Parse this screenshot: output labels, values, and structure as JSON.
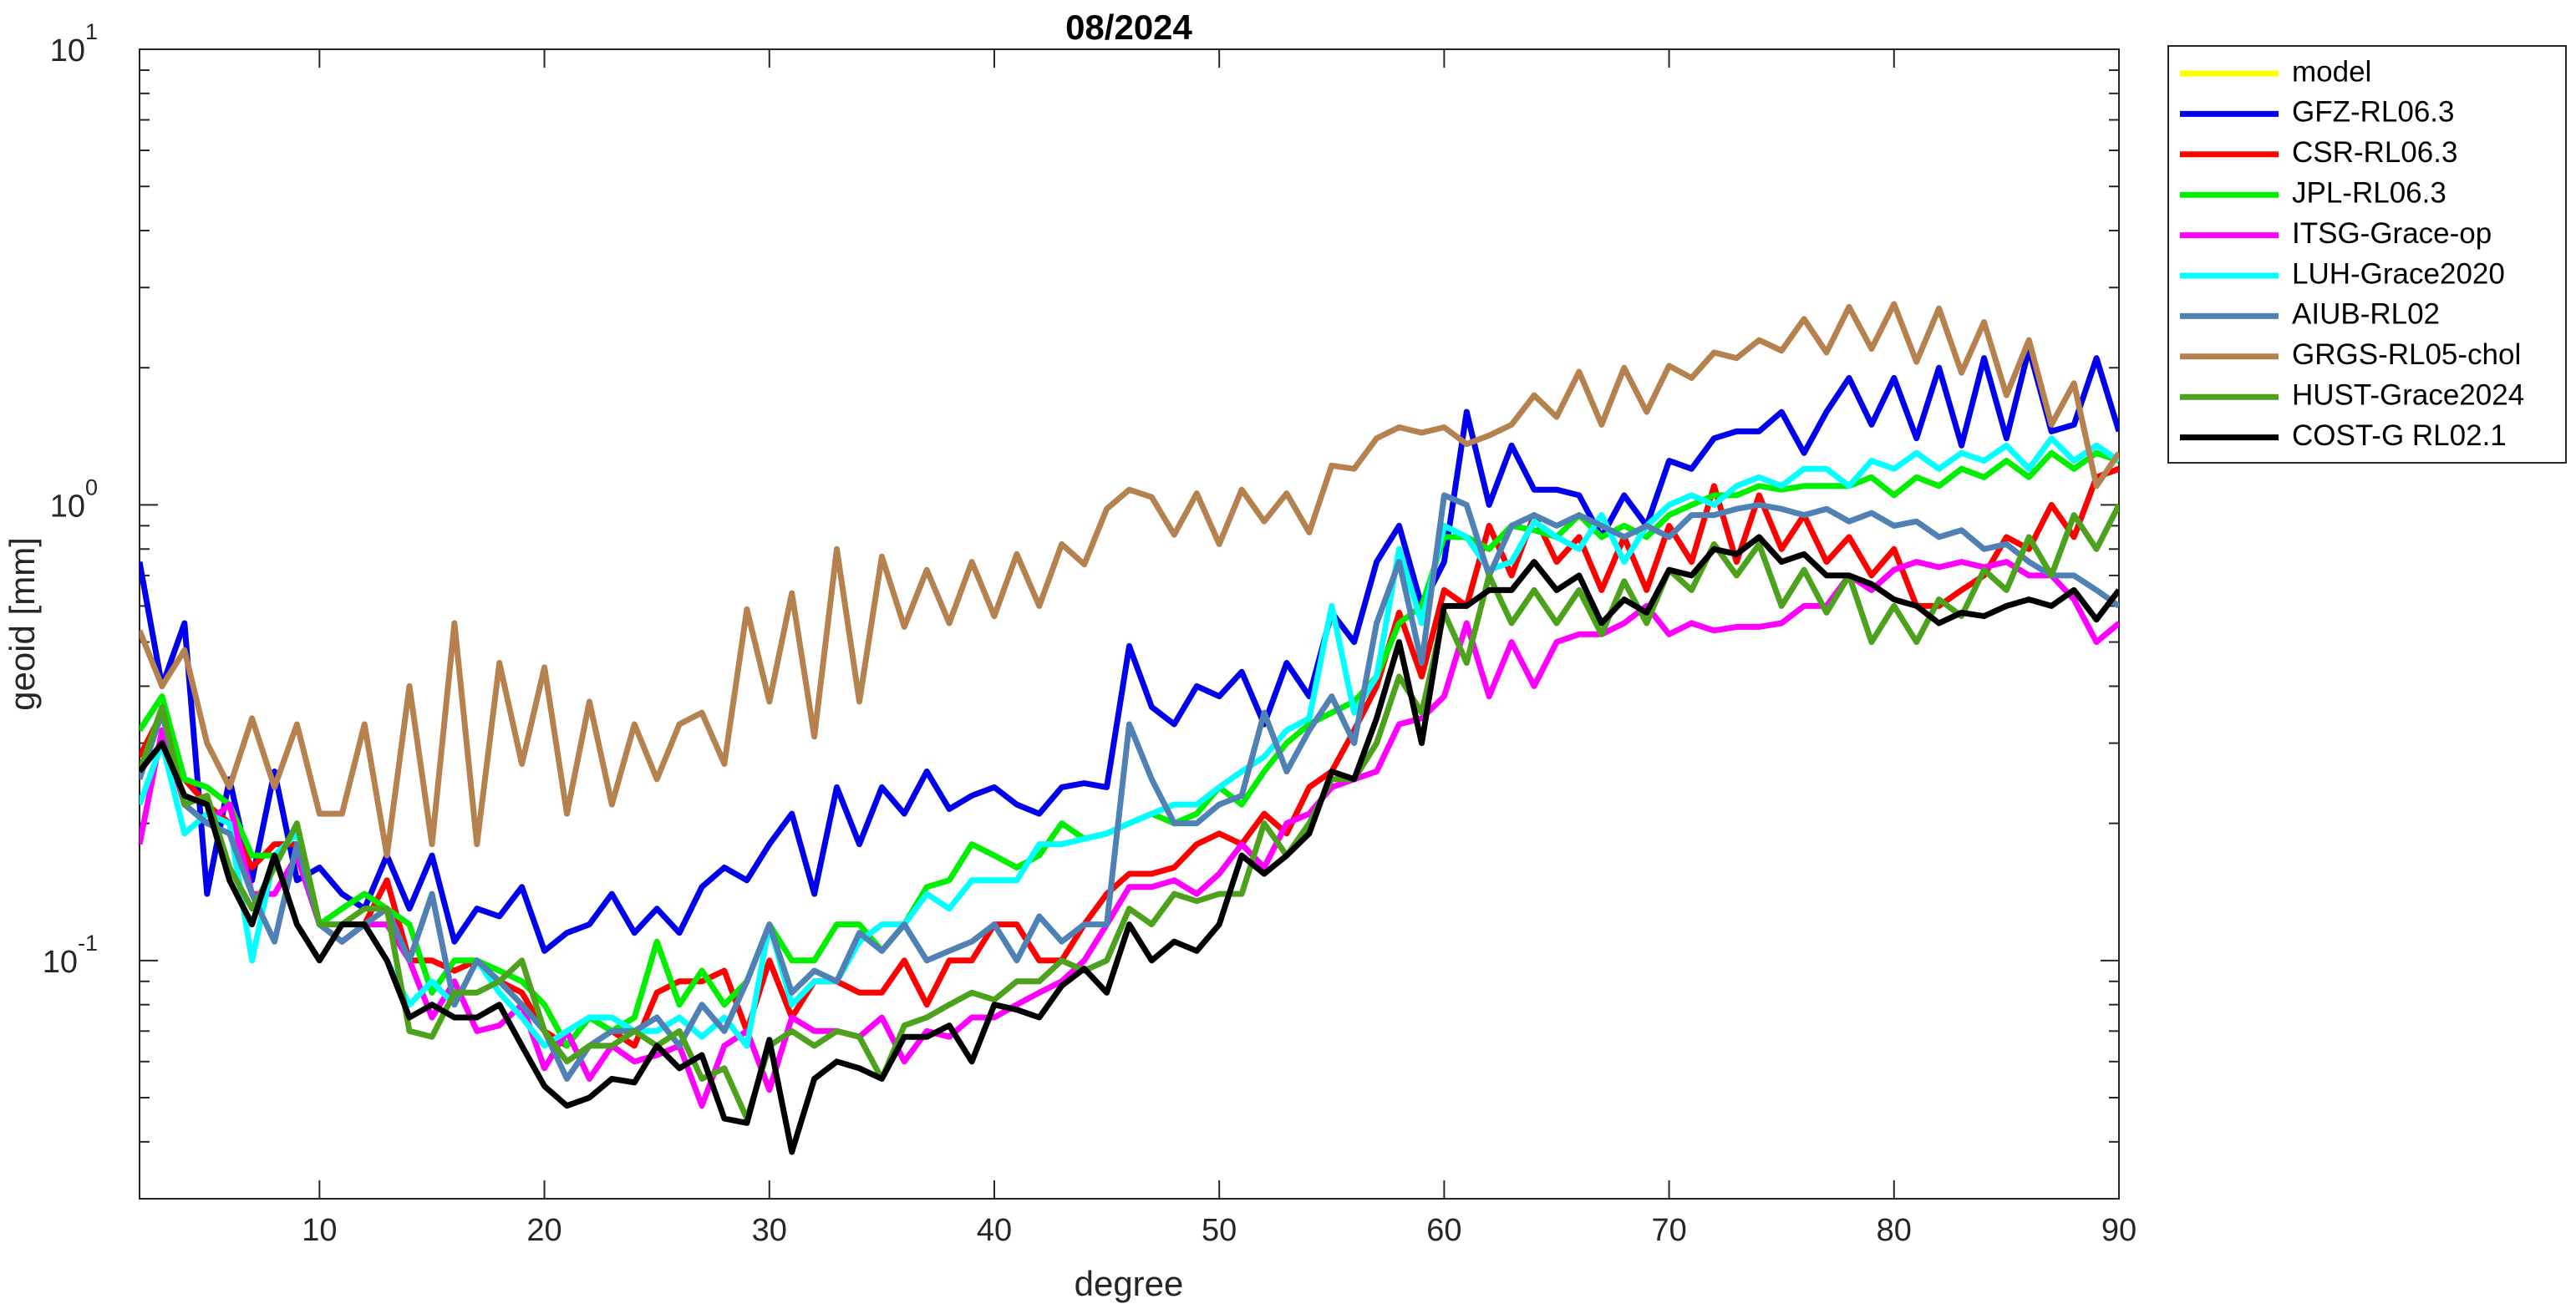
{
  "chart_data": {
    "type": "line",
    "title": "08/2024",
    "xlabel": "degree",
    "ylabel": "geoid [mm]",
    "log_y": true,
    "legend": "outside-right",
    "xlim": [
      2,
      90
    ],
    "ylim": [
      0.03,
      10
    ],
    "xticks": [
      10,
      20,
      30,
      40,
      50,
      60,
      70,
      80,
      90
    ],
    "yticks": [
      {
        "value": 0.1,
        "label": "10",
        "exponent": "-1"
      },
      {
        "value": 1,
        "label": "10",
        "exponent": "0"
      },
      {
        "value": 10,
        "label": "10",
        "exponent": "1"
      }
    ],
    "yminorticks": [
      0.04,
      0.05,
      0.06,
      0.07,
      0.08,
      0.09,
      0.2,
      0.3,
      0.4,
      0.5,
      0.6,
      0.7,
      0.8,
      0.9,
      2,
      3,
      4,
      5,
      6,
      7,
      8,
      9
    ],
    "x": [
      2,
      3,
      4,
      5,
      6,
      7,
      8,
      9,
      10,
      11,
      12,
      13,
      14,
      15,
      16,
      17,
      18,
      19,
      20,
      21,
      22,
      23,
      24,
      25,
      26,
      27,
      28,
      29,
      30,
      31,
      32,
      33,
      34,
      35,
      36,
      37,
      38,
      39,
      40,
      41,
      42,
      43,
      44,
      45,
      46,
      47,
      48,
      49,
      50,
      51,
      52,
      53,
      54,
      55,
      56,
      57,
      58,
      59,
      60,
      61,
      62,
      63,
      64,
      65,
      66,
      67,
      68,
      69,
      70,
      71,
      72,
      73,
      74,
      75,
      76,
      77,
      78,
      79,
      80,
      81,
      82,
      83,
      84,
      85,
      86,
      87,
      88,
      89,
      90
    ],
    "series": [
      {
        "name": "model",
        "color": "#ffff00",
        "values": [
          null,
          null,
          null,
          null,
          null,
          null,
          null,
          null,
          null,
          null,
          null,
          null,
          null,
          null,
          null,
          null,
          null,
          null,
          null,
          null,
          null,
          null,
          null,
          null,
          null,
          null,
          null,
          null,
          null,
          null,
          null,
          null,
          null,
          null,
          null,
          null,
          null,
          null,
          null,
          null,
          null,
          null,
          null,
          null,
          null,
          null,
          null,
          null,
          null,
          null,
          null,
          null,
          null,
          null,
          null,
          null,
          null,
          null,
          null,
          null,
          null,
          null,
          null,
          null,
          null,
          null,
          null,
          null,
          null,
          null,
          null,
          null,
          null,
          null,
          null,
          null,
          null,
          null,
          null,
          null,
          null,
          null,
          null,
          null,
          null,
          null,
          null,
          null,
          null
        ]
      },
      {
        "name": "GFZ-RL06.3",
        "color": "#0000ee",
        "values": [
          0.75,
          0.4,
          0.55,
          0.14,
          0.25,
          0.15,
          0.26,
          0.15,
          0.16,
          0.14,
          0.13,
          0.17,
          0.13,
          0.17,
          0.11,
          0.13,
          0.125,
          0.145,
          0.105,
          0.115,
          0.12,
          0.14,
          0.115,
          0.13,
          0.115,
          0.145,
          0.16,
          0.15,
          0.18,
          0.21,
          0.14,
          0.24,
          0.18,
          0.24,
          0.21,
          0.26,
          0.215,
          0.23,
          0.24,
          0.22,
          0.21,
          0.24,
          0.245,
          0.24,
          0.49,
          0.36,
          0.33,
          0.4,
          0.38,
          0.43,
          0.33,
          0.45,
          0.38,
          0.58,
          0.5,
          0.75,
          0.9,
          0.6,
          0.75,
          1.6,
          1.0,
          1.35,
          1.08,
          1.08,
          1.05,
          0.85,
          1.05,
          0.9,
          1.25,
          1.2,
          1.4,
          1.45,
          1.45,
          1.6,
          1.3,
          1.6,
          1.9,
          1.5,
          1.9,
          1.4,
          2.0,
          1.35,
          2.1,
          1.4,
          2.2,
          1.45,
          1.5,
          2.1,
          1.45
        ]
      },
      {
        "name": "CSR-RL06.3",
        "color": "#ff0000",
        "values": [
          0.28,
          0.35,
          0.25,
          0.22,
          0.2,
          0.16,
          0.18,
          0.18,
          0.12,
          0.11,
          0.12,
          0.15,
          0.1,
          0.1,
          0.095,
          0.1,
          0.09,
          0.085,
          0.07,
          0.065,
          0.075,
          0.07,
          0.065,
          0.085,
          0.09,
          0.09,
          0.095,
          0.07,
          0.1,
          0.075,
          0.09,
          0.09,
          0.085,
          0.085,
          0.1,
          0.08,
          0.1,
          0.1,
          0.12,
          0.12,
          0.1,
          0.1,
          0.12,
          0.14,
          0.155,
          0.155,
          0.16,
          0.18,
          0.19,
          0.18,
          0.21,
          0.19,
          0.24,
          0.26,
          0.32,
          0.4,
          0.58,
          0.42,
          0.65,
          0.6,
          0.9,
          0.7,
          0.95,
          0.75,
          0.85,
          0.65,
          0.85,
          0.65,
          0.9,
          0.75,
          1.1,
          0.75,
          1.05,
          0.8,
          0.95,
          0.75,
          0.85,
          0.7,
          0.8,
          0.6,
          0.6,
          0.65,
          0.7,
          0.85,
          0.8,
          1.0,
          0.85,
          1.15,
          1.2
        ]
      },
      {
        "name": "JPL-RL06.3",
        "color": "#00ee00",
        "values": [
          0.32,
          0.38,
          0.25,
          0.24,
          0.22,
          0.17,
          0.17,
          0.19,
          0.12,
          0.13,
          0.14,
          0.13,
          0.12,
          0.085,
          0.1,
          0.1,
          0.095,
          0.09,
          0.08,
          0.065,
          0.075,
          0.07,
          0.075,
          0.11,
          0.08,
          0.095,
          0.08,
          0.09,
          0.12,
          0.1,
          0.1,
          0.12,
          0.12,
          0.105,
          0.12,
          0.145,
          0.15,
          0.18,
          0.17,
          0.16,
          0.17,
          0.2,
          0.185,
          0.19,
          0.2,
          0.21,
          0.2,
          0.21,
          0.24,
          0.22,
          0.26,
          0.3,
          0.33,
          0.35,
          0.37,
          0.42,
          0.55,
          0.6,
          0.85,
          0.85,
          0.8,
          0.9,
          0.88,
          0.85,
          0.95,
          0.85,
          0.9,
          0.85,
          0.95,
          1.0,
          1.05,
          1.05,
          1.1,
          1.08,
          1.1,
          1.1,
          1.1,
          1.15,
          1.05,
          1.15,
          1.1,
          1.2,
          1.15,
          1.25,
          1.15,
          1.3,
          1.2,
          1.3,
          1.25
        ]
      },
      {
        "name": "ITSG-Grace-op",
        "color": "#ff00ff",
        "values": [
          0.18,
          0.32,
          0.22,
          0.2,
          0.22,
          0.14,
          0.14,
          0.17,
          0.12,
          0.11,
          0.12,
          0.12,
          0.1,
          0.075,
          0.09,
          0.07,
          0.072,
          0.08,
          0.058,
          0.07,
          0.055,
          0.065,
          0.06,
          0.062,
          0.065,
          0.048,
          0.065,
          0.07,
          0.052,
          0.075,
          0.07,
          0.07,
          0.068,
          0.075,
          0.06,
          0.07,
          0.068,
          0.075,
          0.075,
          0.08,
          0.085,
          0.09,
          0.1,
          0.12,
          0.145,
          0.145,
          0.15,
          0.14,
          0.155,
          0.18,
          0.16,
          0.2,
          0.21,
          0.24,
          0.25,
          0.26,
          0.33,
          0.34,
          0.38,
          0.55,
          0.38,
          0.5,
          0.4,
          0.5,
          0.52,
          0.52,
          0.55,
          0.6,
          0.52,
          0.55,
          0.53,
          0.54,
          0.54,
          0.55,
          0.6,
          0.6,
          0.7,
          0.65,
          0.72,
          0.75,
          0.73,
          0.75,
          0.73,
          0.75,
          0.7,
          0.7,
          0.62,
          0.5,
          0.55
        ]
      },
      {
        "name": "LUH-Grace2020",
        "color": "#00ffff",
        "values": [
          0.22,
          0.3,
          0.19,
          0.21,
          0.2,
          0.1,
          0.17,
          0.19,
          0.12,
          0.12,
          0.12,
          0.1,
          0.08,
          0.09,
          0.08,
          0.1,
          0.085,
          0.075,
          0.065,
          0.07,
          0.075,
          0.075,
          0.07,
          0.07,
          0.075,
          0.068,
          0.075,
          0.065,
          0.12,
          0.08,
          0.09,
          0.09,
          0.11,
          0.12,
          0.12,
          0.14,
          0.13,
          0.15,
          0.15,
          0.15,
          0.18,
          0.18,
          0.185,
          0.19,
          0.2,
          0.21,
          0.22,
          0.22,
          0.24,
          0.26,
          0.28,
          0.32,
          0.34,
          0.6,
          0.35,
          0.42,
          0.8,
          0.55,
          0.9,
          0.85,
          0.72,
          0.75,
          0.92,
          0.85,
          0.8,
          0.95,
          0.75,
          0.9,
          1.0,
          1.05,
          1.0,
          1.1,
          1.15,
          1.1,
          1.2,
          1.2,
          1.1,
          1.25,
          1.2,
          1.3,
          1.2,
          1.3,
          1.25,
          1.35,
          1.2,
          1.4,
          1.25,
          1.35,
          1.25
        ]
      },
      {
        "name": "AIUB-RL02",
        "color": "#4f81b4",
        "values": [
          0.25,
          0.35,
          0.22,
          0.2,
          0.19,
          0.14,
          0.11,
          0.18,
          0.12,
          0.11,
          0.12,
          0.13,
          0.1,
          0.14,
          0.08,
          0.1,
          0.09,
          0.08,
          0.07,
          0.055,
          0.065,
          0.07,
          0.07,
          0.075,
          0.065,
          0.08,
          0.07,
          0.09,
          0.12,
          0.085,
          0.095,
          0.09,
          0.115,
          0.105,
          0.12,
          0.1,
          0.105,
          0.11,
          0.12,
          0.1,
          0.125,
          0.11,
          0.12,
          0.12,
          0.33,
          0.25,
          0.2,
          0.2,
          0.22,
          0.23,
          0.35,
          0.26,
          0.32,
          0.38,
          0.3,
          0.55,
          0.75,
          0.45,
          1.05,
          1.0,
          0.7,
          0.9,
          0.95,
          0.9,
          0.95,
          0.9,
          0.85,
          0.9,
          0.85,
          0.95,
          0.95,
          0.98,
          1.0,
          0.98,
          0.95,
          0.98,
          0.92,
          0.96,
          0.9,
          0.92,
          0.85,
          0.88,
          0.8,
          0.82,
          0.75,
          0.7,
          0.7,
          0.65,
          0.6
        ]
      },
      {
        "name": "GRGS-RL05-chol",
        "color": "#b5814e",
        "values": [
          0.53,
          0.4,
          0.48,
          0.3,
          0.24,
          0.34,
          0.24,
          0.33,
          0.21,
          0.21,
          0.33,
          0.17,
          0.4,
          0.18,
          0.55,
          0.18,
          0.45,
          0.27,
          0.44,
          0.21,
          0.37,
          0.22,
          0.33,
          0.25,
          0.33,
          0.35,
          0.27,
          0.59,
          0.37,
          0.64,
          0.31,
          0.8,
          0.37,
          0.77,
          0.54,
          0.72,
          0.55,
          0.75,
          0.57,
          0.78,
          0.6,
          0.82,
          0.74,
          0.98,
          1.08,
          1.04,
          0.86,
          1.06,
          0.82,
          1.08,
          0.92,
          1.06,
          0.87,
          1.22,
          1.2,
          1.4,
          1.48,
          1.44,
          1.48,
          1.36,
          1.42,
          1.5,
          1.74,
          1.56,
          1.96,
          1.5,
          2.0,
          1.6,
          2.02,
          1.9,
          2.16,
          2.1,
          2.3,
          2.18,
          2.56,
          2.16,
          2.72,
          2.2,
          2.76,
          2.06,
          2.7,
          1.95,
          2.52,
          1.74,
          2.3,
          1.5,
          1.85,
          1.1,
          1.3
        ]
      },
      {
        "name": "HUST-Grace2024",
        "color": "#4ca21c",
        "values": [
          0.26,
          0.36,
          0.22,
          0.23,
          0.16,
          0.13,
          0.16,
          0.2,
          0.12,
          0.12,
          0.13,
          0.13,
          0.07,
          0.068,
          0.085,
          0.085,
          0.09,
          0.1,
          0.07,
          0.06,
          0.065,
          0.065,
          0.07,
          0.065,
          0.07,
          0.055,
          0.058,
          0.045,
          0.065,
          0.07,
          0.065,
          0.07,
          0.068,
          0.055,
          0.072,
          0.075,
          0.08,
          0.085,
          0.082,
          0.09,
          0.09,
          0.1,
          0.095,
          0.1,
          0.13,
          0.12,
          0.14,
          0.135,
          0.14,
          0.14,
          0.2,
          0.17,
          0.2,
          0.25,
          0.25,
          0.3,
          0.42,
          0.35,
          0.58,
          0.45,
          0.7,
          0.55,
          0.65,
          0.55,
          0.65,
          0.52,
          0.68,
          0.55,
          0.72,
          0.65,
          0.82,
          0.7,
          0.82,
          0.6,
          0.72,
          0.58,
          0.7,
          0.5,
          0.6,
          0.5,
          0.62,
          0.57,
          0.72,
          0.65,
          0.85,
          0.7,
          0.95,
          0.8,
          1.0
        ]
      },
      {
        "name": "COST-G RL02.1",
        "color": "#000000",
        "values": [
          0.26,
          0.3,
          0.23,
          0.22,
          0.15,
          0.12,
          0.17,
          0.12,
          0.1,
          0.12,
          0.12,
          0.1,
          0.075,
          0.08,
          0.075,
          0.075,
          0.08,
          0.065,
          0.053,
          0.048,
          0.05,
          0.055,
          0.054,
          0.065,
          0.058,
          0.062,
          0.045,
          0.044,
          0.067,
          0.038,
          0.055,
          0.06,
          0.058,
          0.055,
          0.068,
          0.068,
          0.072,
          0.06,
          0.08,
          0.078,
          0.075,
          0.088,
          0.096,
          0.085,
          0.12,
          0.1,
          0.11,
          0.105,
          0.12,
          0.17,
          0.155,
          0.17,
          0.19,
          0.26,
          0.25,
          0.34,
          0.5,
          0.3,
          0.6,
          0.6,
          0.65,
          0.65,
          0.75,
          0.65,
          0.7,
          0.55,
          0.62,
          0.58,
          0.72,
          0.7,
          0.8,
          0.78,
          0.85,
          0.75,
          0.78,
          0.7,
          0.7,
          0.67,
          0.62,
          0.6,
          0.55,
          0.58,
          0.57,
          0.6,
          0.62,
          0.6,
          0.65,
          0.56,
          0.65
        ]
      }
    ]
  }
}
